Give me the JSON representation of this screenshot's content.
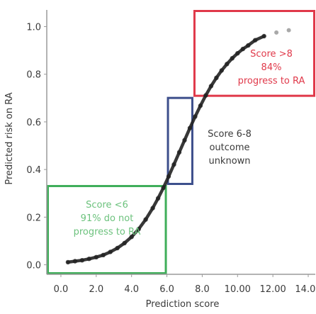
{
  "chart_data": {
    "type": "scatter",
    "title": "",
    "xlabel": "Prediction score",
    "ylabel": "Predicted risk on RA",
    "xlim": [
      -0.8,
      14.4
    ],
    "ylim": [
      -0.04,
      1.07
    ],
    "x_ticks": [
      {
        "value": 0,
        "label": "0.0"
      },
      {
        "value": 2,
        "label": "2.0"
      },
      {
        "value": 4,
        "label": "4.0"
      },
      {
        "value": 6,
        "label": "6.0"
      },
      {
        "value": 8,
        "label": "8.0"
      },
      {
        "value": 10,
        "label": "10.00"
      },
      {
        "value": 12,
        "label": "12.00"
      },
      {
        "value": 14,
        "label": "14.00"
      }
    ],
    "y_ticks": [
      {
        "value": 0,
        "label": "0.0"
      },
      {
        "value": 0.2,
        "label": "0.2"
      },
      {
        "value": 0.4,
        "label": "0.4"
      },
      {
        "value": 0.6,
        "label": "0.6"
      },
      {
        "value": 0.8,
        "label": "0.8"
      },
      {
        "value": 1.0,
        "label": "1.0"
      }
    ],
    "grid": false,
    "colors": {
      "low": "#3fae5a",
      "mid": "#3d4f8c",
      "high": "#e0394a",
      "points": "#222222",
      "axis": "#9a9a9a"
    },
    "series": [
      {
        "x": [
          0.4,
          0.8,
          1.2,
          1.6,
          2.0,
          2.4,
          2.8,
          3.2,
          3.6,
          4.0,
          4.4,
          4.8,
          5.2,
          5.5,
          5.8,
          6.1,
          6.4,
          6.7,
          7.0,
          7.3,
          7.6,
          7.9,
          8.2,
          8.5,
          8.8,
          9.1,
          9.4,
          9.7,
          10.0,
          10.3,
          10.6,
          11.0,
          11.5
        ],
        "y": [
          0.011,
          0.015,
          0.019,
          0.025,
          0.032,
          0.041,
          0.054,
          0.07,
          0.091,
          0.117,
          0.15,
          0.19,
          0.238,
          0.279,
          0.323,
          0.371,
          0.421,
          0.472,
          0.523,
          0.574,
          0.622,
          0.668,
          0.711,
          0.75,
          0.785,
          0.816,
          0.843,
          0.867,
          0.888,
          0.906,
          0.921,
          0.943,
          0.96
        ]
      },
      {
        "x": [
          12.2,
          12.9
        ],
        "y": [
          0.975,
          0.985
        ]
      }
    ],
    "regions": [
      {
        "id": "low",
        "x": [
          -0.8,
          6.0
        ],
        "y": [
          -0.04,
          0.335
        ],
        "lines": [
          "Score <6",
          "91% do not",
          "progress to RA"
        ]
      },
      {
        "id": "mid",
        "x": [
          6.0,
          7.5
        ],
        "y": [
          0.335,
          0.705
        ],
        "lines": [
          "Score 6-8",
          "outcome",
          "unknown"
        ]
      },
      {
        "id": "high",
        "x": [
          7.5,
          14.4
        ],
        "y": [
          0.705,
          1.07
        ],
        "lines": [
          "Score >8",
          "84%",
          "progress to RA"
        ]
      }
    ]
  }
}
